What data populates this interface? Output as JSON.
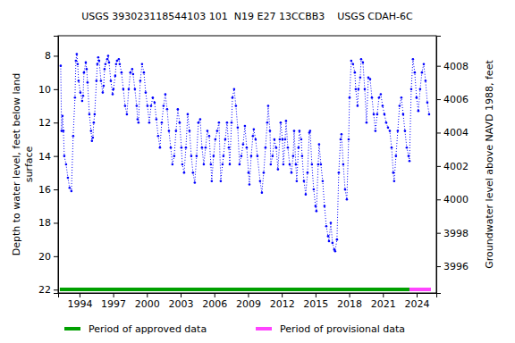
{
  "chart_data": {
    "type": "line",
    "title": "USGS 393023118544103 101  N19 E27 13CCBB3    USGS CDAH-6C",
    "ylabel": "Depth to water level, feet below land surface",
    "y2label": "Groundwater level above NAVD 1988, feet",
    "x": [
      1992.33,
      1992.41,
      1992.49,
      1992.57,
      1992.65,
      1992.81,
      1992.97,
      1993.12,
      1993.28,
      1993.44,
      1993.6,
      1993.68,
      1993.76,
      1993.84,
      1993.92,
      1994.08,
      1994.24,
      1994.32,
      1994.4,
      1994.56,
      1994.64,
      1994.72,
      1994.88,
      1995.03,
      1995.11,
      1995.19,
      1995.27,
      1995.35,
      1995.51,
      1995.59,
      1995.67,
      1995.75,
      1995.91,
      1996.07,
      1996.15,
      1996.23,
      1996.31,
      1996.47,
      1996.55,
      1996.63,
      1996.79,
      1996.95,
      1997.02,
      1997.18,
      1997.26,
      1997.34,
      1997.5,
      1997.58,
      1997.74,
      1997.9,
      1998.06,
      1998.22,
      1998.38,
      1998.53,
      1998.69,
      1998.77,
      1998.93,
      1999.09,
      1999.17,
      1999.25,
      1999.41,
      1999.57,
      1999.73,
      1999.89,
      2000.05,
      2000.21,
      2000.37,
      2000.52,
      2000.68,
      2000.84,
      2001.0,
      2001.16,
      2001.32,
      2001.48,
      2001.64,
      2001.8,
      2001.96,
      2002.12,
      2002.27,
      2002.43,
      2002.59,
      2002.75,
      2002.91,
      2003.07,
      2003.15,
      2003.31,
      2003.47,
      2003.63,
      2003.79,
      2003.95,
      2004.1,
      2004.26,
      2004.42,
      2004.58,
      2004.74,
      2004.9,
      2005.06,
      2005.22,
      2005.38,
      2005.54,
      2005.69,
      2005.77,
      2005.93,
      2006.09,
      2006.25,
      2006.41,
      2006.57,
      2006.73,
      2006.81,
      2006.97,
      2007.13,
      2007.29,
      2007.37,
      2007.53,
      2007.61,
      2007.76,
      2007.92,
      2008.08,
      2008.24,
      2008.4,
      2008.56,
      2008.72,
      2008.88,
      2009.04,
      2009.12,
      2009.28,
      2009.43,
      2009.51,
      2009.67,
      2009.83,
      2010.07,
      2010.23,
      2010.39,
      2010.55,
      2010.71,
      2010.79,
      2010.95,
      2011.02,
      2011.18,
      2011.34,
      2011.5,
      2011.66,
      2011.82,
      2011.9,
      2012.06,
      2012.14,
      2012.3,
      2012.38,
      2012.54,
      2012.7,
      2012.86,
      2013.01,
      2013.1,
      2013.25,
      2013.33,
      2013.49,
      2013.57,
      2013.73,
      2013.81,
      2013.97,
      2014.13,
      2014.29,
      2014.45,
      2014.52,
      2014.68,
      2014.84,
      2015.0,
      2015.08,
      2015.24,
      2015.32,
      2015.48,
      2015.64,
      2015.8,
      2015.96,
      2016.12,
      2016.2,
      2016.36,
      2016.51,
      2016.67,
      2016.75,
      2016.91,
      2017.07,
      2017.23,
      2017.31,
      2017.47,
      2017.63,
      2017.79,
      2017.95,
      2018.03,
      2018.18,
      2018.34,
      2018.5,
      2018.58,
      2018.74,
      2018.82,
      2018.98,
      2019.06,
      2019.22,
      2019.38,
      2019.54,
      2019.7,
      2019.86,
      2020.02,
      2020.18,
      2020.33,
      2020.49,
      2020.65,
      2020.81,
      2020.97,
      2021.13,
      2021.29,
      2021.45,
      2021.61,
      2021.77,
      2021.92,
      2022.0,
      2022.16,
      2022.32,
      2022.48,
      2022.64,
      2022.8,
      2022.96,
      2023.12,
      2023.28,
      2023.36,
      2023.52,
      2023.67,
      2023.83,
      2023.99,
      2024.15,
      2024.31,
      2024.47,
      2024.63,
      2024.79,
      2024.95,
      2025.11
    ],
    "values": [
      8.6,
      12.5,
      11.6,
      12.5,
      14.0,
      14.5,
      15.3,
      15.9,
      16.1,
      12.8,
      10.5,
      8.3,
      7.9,
      8.5,
      9.5,
      10.2,
      10.7,
      10.4,
      9.0,
      8.4,
      8.8,
      9.6,
      11.5,
      12.5,
      13.1,
      12.9,
      12.0,
      11.5,
      9.5,
      8.5,
      8.1,
      8.3,
      9.5,
      10.2,
      9.8,
      8.8,
      8.5,
      8.2,
      8.0,
      8.4,
      9.5,
      10.3,
      10.0,
      9.2,
      8.5,
      8.3,
      8.2,
      8.5,
      9.0,
      10.0,
      11.0,
      11.5,
      10.0,
      9.0,
      8.8,
      9.1,
      10.0,
      11.0,
      11.8,
      12.0,
      9.5,
      8.5,
      9.0,
      10.2,
      11.0,
      12.0,
      11.0,
      10.5,
      10.8,
      11.8,
      12.8,
      13.5,
      12.0,
      11.0,
      10.3,
      11.2,
      12.5,
      13.5,
      14.5,
      14.0,
      12.5,
      11.2,
      12.0,
      13.5,
      14.5,
      15.0,
      13.5,
      11.5,
      12.5,
      14.0,
      15.0,
      15.6,
      14.0,
      12.0,
      11.8,
      13.5,
      14.5,
      13.5,
      12.5,
      12.8,
      14.5,
      15.5,
      14.0,
      13.0,
      12.5,
      12.0,
      15.5,
      14.5,
      14.0,
      13.0,
      12.0,
      13.5,
      14.5,
      12.0,
      10.5,
      10.0,
      11.0,
      12.3,
      14.5,
      14.0,
      13.3,
      12.2,
      13.5,
      15.0,
      15.7,
      14.0,
      12.8,
      12.4,
      13.0,
      14.0,
      15.5,
      16.2,
      15.0,
      13.5,
      12.0,
      11.0,
      12.5,
      14.5,
      14.0,
      13.0,
      13.5,
      14.8,
      13.0,
      12.0,
      13.0,
      14.5,
      13.0,
      11.9,
      13.5,
      14.5,
      15.0,
      14.0,
      12.5,
      14.5,
      15.5,
      13.5,
      12.5,
      13.0,
      14.0,
      15.5,
      16.3,
      15.0,
      12.6,
      12.5,
      14.5,
      16.0,
      17.0,
      17.3,
      14.5,
      13.3,
      14.5,
      15.5,
      17.0,
      18.2,
      18.8,
      19.1,
      18.0,
      19.2,
      19.6,
      19.7,
      19.0,
      15.0,
      13.0,
      12.7,
      14.5,
      16.0,
      16.6,
      13.0,
      10.5,
      8.3,
      8.5,
      9.0,
      10.0,
      11.0,
      10.0,
      9.3,
      8.2,
      8.4,
      10.0,
      12.0,
      9.3,
      9.4,
      10.5,
      11.5,
      12.5,
      11.5,
      10.5,
      10.3,
      11.0,
      11.5,
      12.0,
      12.3,
      12.5,
      13.5,
      15.0,
      15.5,
      14.0,
      12.5,
      11.0,
      10.5,
      11.5,
      12.5,
      13.5,
      14.0,
      14.3,
      10.0,
      8.2,
      9.0,
      10.5,
      11.3,
      10.0,
      9.0,
      8.5,
      9.5,
      10.8,
      11.5
    ],
    "color": "#0000ff",
    "line_style": "dotted",
    "marker": "circle",
    "xlim": [
      1992.1,
      2025.75
    ],
    "xticks": [
      1994,
      1997,
      2000,
      2003,
      2006,
      2009,
      2012,
      2015,
      2018,
      2021,
      2024
    ],
    "ylim": [
      22.2,
      6.8
    ],
    "yticks": [
      8,
      10,
      12,
      14,
      16,
      18,
      20,
      22
    ],
    "y2lim": [
      3994.4,
      4009.8
    ],
    "y2ticks": [
      3996,
      3998,
      4000,
      4002,
      4004,
      4006,
      4008
    ],
    "periods": [
      {
        "name": "Period of approved data",
        "color": "#00a000",
        "x": [
          1992.25,
          2023.36
        ]
      },
      {
        "name": "Period of provisional data",
        "color": "#ff44ff",
        "x": [
          2023.36,
          2025.27
        ]
      }
    ],
    "legend": "bottom",
    "grid": false
  }
}
